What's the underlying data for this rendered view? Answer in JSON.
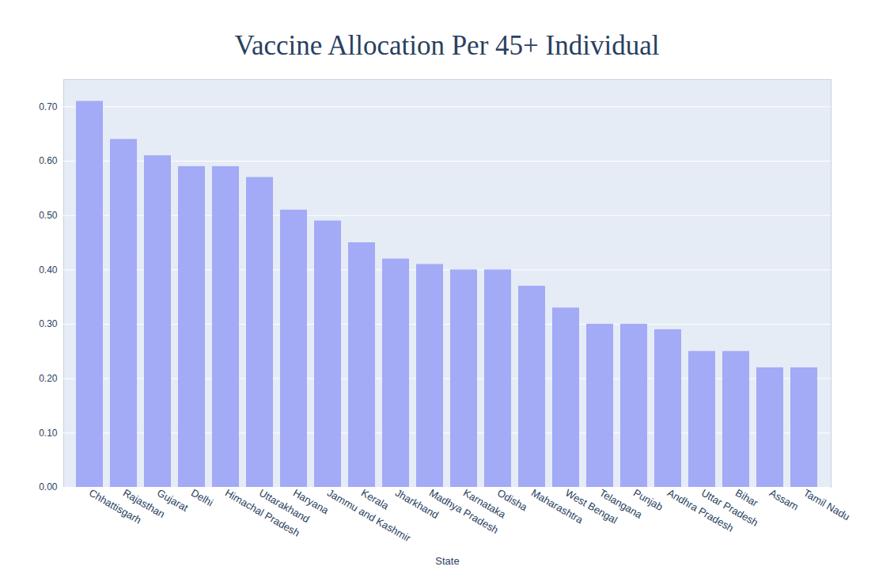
{
  "chart_data": {
    "type": "bar",
    "title": "Vaccine Allocation Per 45+ Individual",
    "x_label": "State",
    "categories": [
      "Chhattisgarh",
      "Rajasthan",
      "Gujarat",
      "Delhi",
      "Himachal Pradesh",
      "Uttarakhand",
      "Haryana",
      "Jammu and Kashmir",
      "Kerala",
      "Jharkhand",
      "Madhya Pradesh",
      "Karnataka",
      "Odisha",
      "Maharashtra",
      "West Bengal",
      "Telangana",
      "Punjab",
      "Andhra Pradesh",
      "Uttar Pradesh",
      "Bihar",
      "Assam",
      "Tamil Nadu"
    ],
    "values": [
      0.71,
      0.64,
      0.61,
      0.59,
      0.59,
      0.57,
      0.51,
      0.49,
      0.45,
      0.42,
      0.41,
      0.4,
      0.4,
      0.37,
      0.33,
      0.3,
      0.3,
      0.29,
      0.25,
      0.25,
      0.22,
      0.22
    ],
    "color": "#a3aaf6",
    "ylim": [
      0,
      0.75
    ],
    "yticks": [
      {
        "value": 0,
        "label": "0.00"
      },
      {
        "value": 0.1,
        "label": "0.10"
      },
      {
        "value": 0.2,
        "label": "0.20"
      },
      {
        "value": 0.3,
        "label": "0.30"
      },
      {
        "value": 0.4,
        "label": "0.40"
      },
      {
        "value": 0.5,
        "label": "0.50"
      },
      {
        "value": 0.6,
        "label": "0.60"
      },
      {
        "value": 0.7,
        "label": "0.70"
      }
    ],
    "grid": true
  }
}
